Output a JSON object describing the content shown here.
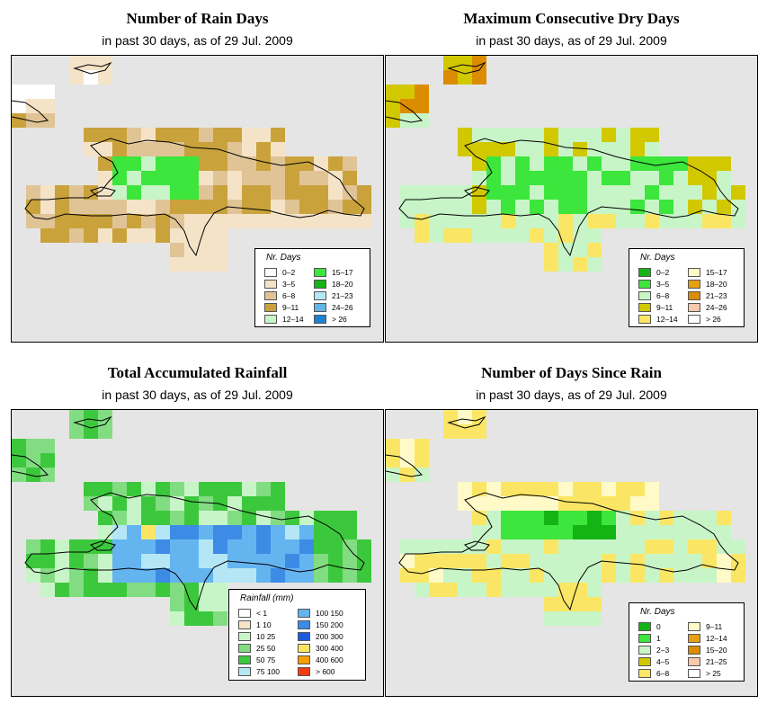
{
  "panels": [
    {
      "title": "Number of Rain Days",
      "subtitle": "in past 30 days, as of  29 Jul. 2009",
      "legend": {
        "title": "Nr. Days",
        "items": [
          {
            "label": "0–2",
            "color": "#ffffff"
          },
          {
            "label": "3–5",
            "color": "#f5e3c8"
          },
          {
            "label": "6–8",
            "color": "#e0c496"
          },
          {
            "label": "9–11",
            "color": "#c9a23c"
          },
          {
            "label": "12–14",
            "color": "#c8f5c8"
          },
          {
            "label": "15–17",
            "color": "#3ce63c"
          },
          {
            "label": "18–20",
            "color": "#14b414"
          },
          {
            "label": "21–23",
            "color": "#b4e6f5"
          },
          {
            "label": "24–26",
            "color": "#64b4e6"
          },
          {
            "label": "> 26",
            "color": "#1e82d2"
          }
        ]
      }
    },
    {
      "title": "Maximum Consecutive Dry Days",
      "subtitle": "in past 30 days, as of  29 Jul. 2009",
      "legend": {
        "title": "Nr. Days",
        "items": [
          {
            "label": "0–2",
            "color": "#14b414"
          },
          {
            "label": "3–5",
            "color": "#3ce63c"
          },
          {
            "label": "6–8",
            "color": "#c8f5c8"
          },
          {
            "label": "9–11",
            "color": "#d2c800"
          },
          {
            "label": "12–14",
            "color": "#fae664"
          },
          {
            "label": "15–17",
            "color": "#fffac8"
          },
          {
            "label": "18–20",
            "color": "#e6a014"
          },
          {
            "label": "21–23",
            "color": "#dc8c00"
          },
          {
            "label": "24–26",
            "color": "#fac8aa"
          },
          {
            "label": "> 26",
            "color": "#ffffff"
          }
        ]
      }
    },
    {
      "title": "Total Accumulated Rainfall",
      "subtitle": "in past 30 days, as of  29 Jul. 2009",
      "legend": {
        "title": "Rainfall (mm)",
        "items": [
          {
            "label": "< 1",
            "color": "#ffffff"
          },
          {
            "label": "1    10",
            "color": "#f5e3c8"
          },
          {
            "label": "10   25",
            "color": "#c8f5c8"
          },
          {
            "label": "25   50",
            "color": "#82dc82"
          },
          {
            "label": "50   75",
            "color": "#3cc83c"
          },
          {
            "label": "75  100",
            "color": "#b4e6f5"
          },
          {
            "label": "100  150",
            "color": "#64b4f0"
          },
          {
            "label": "150  200",
            "color": "#3c8ce6"
          },
          {
            "label": "200  300",
            "color": "#1e5adc"
          },
          {
            "label": "300  400",
            "color": "#fae664"
          },
          {
            "label": "400  600",
            "color": "#f5a000"
          },
          {
            "label": "> 600",
            "color": "#f03c14"
          }
        ]
      }
    },
    {
      "title": "Number of Days Since Rain",
      "subtitle": "in past 30 days, as of  29 Jul. 2009",
      "legend": {
        "title": "Nr. Days",
        "items": [
          {
            "label": "0",
            "color": "#14b414"
          },
          {
            "label": "1",
            "color": "#3ce63c"
          },
          {
            "label": "2–3",
            "color": "#c8f5c8"
          },
          {
            "label": "4–5",
            "color": "#d2c800"
          },
          {
            "label": "6–8",
            "color": "#fae664"
          },
          {
            "label": "9–11",
            "color": "#fffac8"
          },
          {
            "label": "12–14",
            "color": "#e6a014"
          },
          {
            "label": "15–20",
            "color": "#dc8c00"
          },
          {
            "label": "21–25",
            "color": "#fac8aa"
          },
          {
            "label": "> 25",
            "color": "#ffffff"
          }
        ]
      }
    }
  ]
}
